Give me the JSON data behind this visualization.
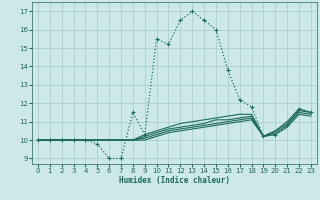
{
  "xlabel": "Humidex (Indice chaleur)",
  "xlim": [
    -0.5,
    23.5
  ],
  "ylim": [
    8.7,
    17.5
  ],
  "yticks": [
    9,
    10,
    11,
    12,
    13,
    14,
    15,
    16,
    17
  ],
  "xticks": [
    0,
    1,
    2,
    3,
    4,
    5,
    6,
    7,
    8,
    9,
    10,
    11,
    12,
    13,
    14,
    15,
    16,
    17,
    18,
    19,
    20,
    21,
    22,
    23
  ],
  "bg_color": "#cce8e8",
  "grid_color": "#aacece",
  "line_color": "#1a6b5a",
  "main_line": [
    10.0,
    10.0,
    10.0,
    10.0,
    10.0,
    9.8,
    9.0,
    9.0,
    11.5,
    10.3,
    15.5,
    15.2,
    16.5,
    17.0,
    16.5,
    16.0,
    13.8,
    12.2,
    11.8,
    10.2,
    10.3,
    10.8,
    11.7,
    11.5
  ],
  "other_lines": [
    [
      10.0,
      10.0,
      10.0,
      10.0,
      10.0,
      10.0,
      10.0,
      10.0,
      10.0,
      10.3,
      10.5,
      10.7,
      10.9,
      11.0,
      11.1,
      11.2,
      11.3,
      11.4,
      11.4,
      10.2,
      10.5,
      11.0,
      11.7,
      11.5
    ],
    [
      10.0,
      10.0,
      10.0,
      10.0,
      10.0,
      10.0,
      10.0,
      10.0,
      10.0,
      10.2,
      10.4,
      10.6,
      10.7,
      10.8,
      10.9,
      11.1,
      11.1,
      11.2,
      11.3,
      10.2,
      10.5,
      10.9,
      11.6,
      11.5
    ],
    [
      10.0,
      10.0,
      10.0,
      10.0,
      10.0,
      10.0,
      10.0,
      10.0,
      10.0,
      10.1,
      10.3,
      10.5,
      10.6,
      10.7,
      10.8,
      10.9,
      11.0,
      11.1,
      11.2,
      10.2,
      10.4,
      10.8,
      11.5,
      11.4
    ],
    [
      10.0,
      10.0,
      10.0,
      10.0,
      10.0,
      10.0,
      10.0,
      10.0,
      10.0,
      10.0,
      10.2,
      10.4,
      10.5,
      10.6,
      10.7,
      10.8,
      10.9,
      11.0,
      11.1,
      10.2,
      10.3,
      10.7,
      11.4,
      11.3
    ]
  ]
}
